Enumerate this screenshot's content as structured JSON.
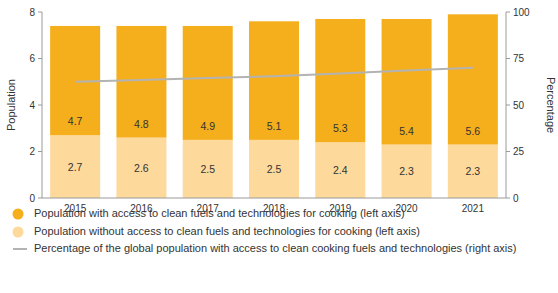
{
  "chart_data": {
    "type": "bar",
    "stacked": true,
    "legend": "bottom",
    "y_label": "Population",
    "y2_label": "Percentage",
    "categories": [
      "2015",
      "2016",
      "2017",
      "2018",
      "2019",
      "2020",
      "2021"
    ],
    "series": [
      {
        "name": "Population with access to clean fuels and technologies for cooking (left axis)",
        "type": "bar",
        "color": "#f5ae1c",
        "data_labels": true,
        "values": [
          4.7,
          4.8,
          4.9,
          5.1,
          5.3,
          5.4,
          5.6
        ]
      },
      {
        "name": "Population without access to clean fuels and technologies for cooking (left axis)",
        "type": "bar",
        "color": "#fdd99c",
        "data_labels": true,
        "values": [
          2.7,
          2.6,
          2.5,
          2.5,
          2.4,
          2.3,
          2.3
        ]
      },
      {
        "name": "Percentage of the global population with access to clean cooking fuels and technologies (right axis)",
        "type": "line",
        "axis": "y2",
        "color": "#b3b3b3",
        "values": [
          62.5,
          63.5,
          64.5,
          65.5,
          67,
          68.5,
          70
        ]
      }
    ],
    "ylim": [
      0,
      8
    ],
    "yticks": [
      0,
      2,
      4,
      6,
      8
    ],
    "y2lim": [
      0,
      100
    ],
    "y2ticks": [
      0,
      25,
      50,
      75,
      100
    ],
    "grid": false
  }
}
